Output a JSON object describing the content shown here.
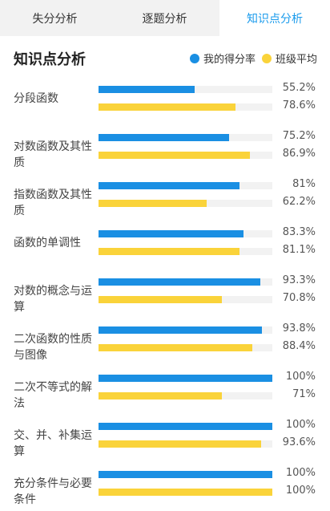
{
  "tabs": [
    {
      "label": "失分分析",
      "active": false
    },
    {
      "label": "逐题分析",
      "active": false
    },
    {
      "label": "知识点分析",
      "active": true
    }
  ],
  "section_title": "知识点分析",
  "legend": {
    "mine": {
      "label": "我的得分率",
      "color": "#1a8fe3"
    },
    "class": {
      "label": "班级平均",
      "color": "#fad33a"
    }
  },
  "items": [
    {
      "name": "分段函数",
      "mine": 55.2,
      "mine_label": "55.2%",
      "class": 78.6,
      "class_label": "78.6%"
    },
    {
      "name": "对数函数及其性质",
      "mine": 75.2,
      "mine_label": "75.2%",
      "class": 86.9,
      "class_label": "86.9%"
    },
    {
      "name": "指数函数及其性质",
      "mine": 81,
      "mine_label": "81%",
      "class": 62.2,
      "class_label": "62.2%"
    },
    {
      "name": "函数的单调性",
      "mine": 83.3,
      "mine_label": "83.3%",
      "class": 81.1,
      "class_label": "81.1%"
    },
    {
      "name": "对数的概念与运算",
      "mine": 93.3,
      "mine_label": "93.3%",
      "class": 70.8,
      "class_label": "70.8%"
    },
    {
      "name": "二次函数的性质与图像",
      "mine": 93.8,
      "mine_label": "93.8%",
      "class": 88.4,
      "class_label": "88.4%"
    },
    {
      "name": "二次不等式的解法",
      "mine": 100,
      "mine_label": "100%",
      "class": 71,
      "class_label": "71%"
    },
    {
      "name": "交、并、补集运算",
      "mine": 100,
      "mine_label": "100%",
      "class": 93.6,
      "class_label": "93.6%"
    },
    {
      "name": "充分条件与必要条件",
      "mine": 100,
      "mine_label": "100%",
      "class": 100,
      "class_label": "100%"
    }
  ]
}
